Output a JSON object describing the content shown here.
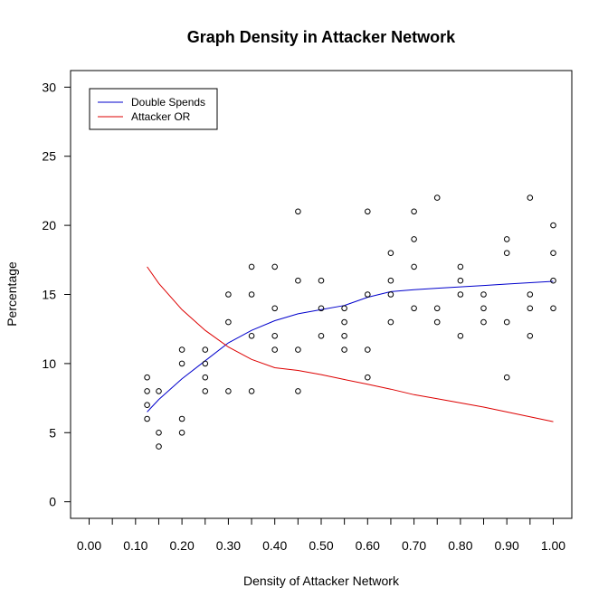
{
  "chart_data": {
    "type": "scatter",
    "title": "Graph Density in Attacker Network",
    "xlabel": "Density of Attacker Network",
    "ylabel": "Percentage",
    "xlim": [
      -0.04,
      1.04
    ],
    "ylim": [
      -1.2,
      31.2
    ],
    "x_ticks": [
      0.0,
      0.05,
      0.1,
      0.15,
      0.2,
      0.25,
      0.3,
      0.35,
      0.4,
      0.45,
      0.5,
      0.55,
      0.6,
      0.65,
      0.7,
      0.75,
      0.8,
      0.85,
      0.9,
      0.95,
      1.0
    ],
    "x_tick_labels": [
      "0.00",
      "",
      "0.10",
      "",
      "0.20",
      "",
      "0.30",
      "",
      "0.40",
      "",
      "0.50",
      "",
      "0.60",
      "",
      "0.70",
      "",
      "0.80",
      "",
      "0.90",
      "",
      "1.00"
    ],
    "y_ticks": [
      0,
      5,
      10,
      15,
      20,
      25,
      30
    ],
    "y_tick_labels": [
      "0",
      "5",
      "10",
      "15",
      "20",
      "25",
      "30"
    ],
    "grid": false,
    "legend_position": "top-left",
    "points": [
      [
        0.125,
        9
      ],
      [
        0.125,
        8
      ],
      [
        0.125,
        7
      ],
      [
        0.125,
        6
      ],
      [
        0.15,
        8
      ],
      [
        0.15,
        5
      ],
      [
        0.15,
        4
      ],
      [
        0.2,
        11
      ],
      [
        0.2,
        10
      ],
      [
        0.2,
        6
      ],
      [
        0.2,
        5
      ],
      [
        0.25,
        11
      ],
      [
        0.25,
        10
      ],
      [
        0.25,
        9
      ],
      [
        0.25,
        8
      ],
      [
        0.3,
        15
      ],
      [
        0.3,
        13
      ],
      [
        0.3,
        8
      ],
      [
        0.35,
        17
      ],
      [
        0.35,
        15
      ],
      [
        0.35,
        12
      ],
      [
        0.35,
        8
      ],
      [
        0.4,
        17
      ],
      [
        0.4,
        14
      ],
      [
        0.4,
        12
      ],
      [
        0.4,
        11
      ],
      [
        0.45,
        21
      ],
      [
        0.45,
        16
      ],
      [
        0.45,
        11
      ],
      [
        0.45,
        8
      ],
      [
        0.5,
        16
      ],
      [
        0.5,
        14
      ],
      [
        0.5,
        12
      ],
      [
        0.55,
        14
      ],
      [
        0.55,
        13
      ],
      [
        0.55,
        12
      ],
      [
        0.55,
        11
      ],
      [
        0.6,
        21
      ],
      [
        0.6,
        15
      ],
      [
        0.6,
        11
      ],
      [
        0.6,
        9
      ],
      [
        0.65,
        18
      ],
      [
        0.65,
        16
      ],
      [
        0.65,
        15
      ],
      [
        0.65,
        13
      ],
      [
        0.7,
        21
      ],
      [
        0.7,
        19
      ],
      [
        0.7,
        17
      ],
      [
        0.7,
        14
      ],
      [
        0.75,
        22
      ],
      [
        0.75,
        14
      ],
      [
        0.75,
        13
      ],
      [
        0.8,
        17
      ],
      [
        0.8,
        16
      ],
      [
        0.8,
        15
      ],
      [
        0.8,
        12
      ],
      [
        0.85,
        15
      ],
      [
        0.85,
        14
      ],
      [
        0.85,
        13
      ],
      [
        0.9,
        19
      ],
      [
        0.9,
        18
      ],
      [
        0.9,
        13
      ],
      [
        0.9,
        9
      ],
      [
        0.95,
        22
      ],
      [
        0.95,
        15
      ],
      [
        0.95,
        14
      ],
      [
        0.95,
        12
      ],
      [
        1.0,
        20
      ],
      [
        1.0,
        18
      ],
      [
        1.0,
        16
      ],
      [
        1.0,
        14
      ]
    ],
    "series": [
      {
        "name": "Double Spends",
        "color": "#0000cc",
        "x": [
          0.125,
          0.15,
          0.2,
          0.25,
          0.3,
          0.35,
          0.4,
          0.45,
          0.5,
          0.55,
          0.6,
          0.65,
          0.7,
          0.75,
          0.8,
          0.85,
          0.9,
          0.95,
          1.0
        ],
        "values": [
          6.5,
          7.4,
          8.9,
          10.2,
          11.5,
          12.4,
          13.1,
          13.6,
          13.9,
          14.2,
          14.8,
          15.2,
          15.35,
          15.45,
          15.55,
          15.65,
          15.75,
          15.85,
          15.95
        ]
      },
      {
        "name": "Attacker OR",
        "color": "#dd0000",
        "x": [
          0.125,
          0.15,
          0.2,
          0.25,
          0.3,
          0.35,
          0.4,
          0.45,
          0.5,
          0.55,
          0.6,
          0.65,
          0.7,
          0.75,
          0.8,
          0.85,
          0.9,
          0.95,
          1.0
        ],
        "values": [
          17.0,
          15.8,
          13.9,
          12.4,
          11.2,
          10.3,
          9.7,
          9.5,
          9.2,
          8.85,
          8.5,
          8.15,
          7.75,
          7.45,
          7.15,
          6.85,
          6.5,
          6.15,
          5.8
        ]
      }
    ]
  }
}
